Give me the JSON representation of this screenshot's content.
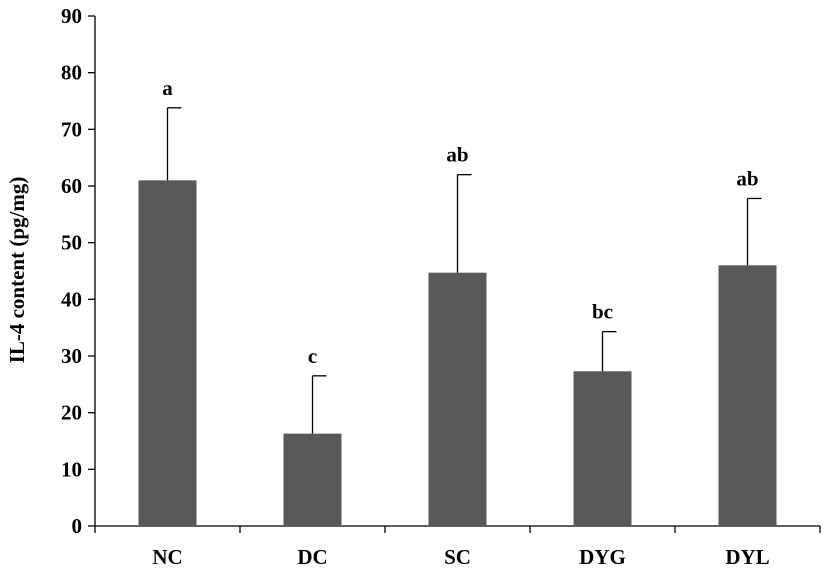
{
  "chart_data": {
    "type": "bar",
    "categories": [
      "NC",
      "DC",
      "SC",
      "DYG",
      "DYL"
    ],
    "values": [
      61,
      16.3,
      44.7,
      27.3,
      46
    ],
    "error_upper": [
      73.8,
      26.5,
      62,
      34.3,
      57.8
    ],
    "significance_labels": [
      "a",
      "c",
      "ab",
      "bc",
      "ab"
    ],
    "title": "",
    "xlabel": "",
    "ylabel": "IL-4 content (pg/mg)",
    "ylim": [
      0,
      90
    ],
    "yticks": [
      0,
      10,
      20,
      30,
      40,
      50,
      60,
      70,
      80,
      90
    ],
    "grid": false,
    "legend": "none",
    "bar_color": "#595959",
    "axis_color": "#000000"
  }
}
